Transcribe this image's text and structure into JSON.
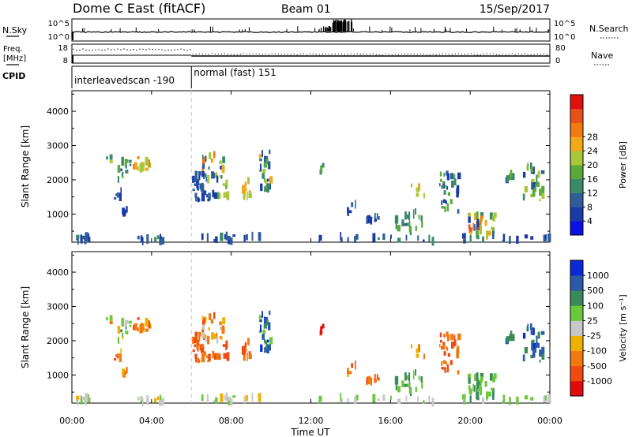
{
  "header": {
    "station": "Dome C East (fitACF)",
    "beam": "Beam 01",
    "date": "15/Sep/2017"
  },
  "strip_labels": {
    "nsky": "N.Sky",
    "freq": "Freq.",
    "freq_unit": "[MHz]",
    "cpid": "CPID",
    "nsearch": "N.Search",
    "nave": "Nave",
    "nsky_ticks": [
      "10^5",
      "10^0"
    ],
    "nsearch_ticks": [
      "10^5",
      "10^0"
    ],
    "freq_ticks": [
      "18",
      "8"
    ],
    "nave_ticks": [
      "80",
      "0"
    ]
  },
  "cpid_segments": [
    {
      "start": 0.0,
      "label": "interleavedscan -190"
    },
    {
      "start": 6.0,
      "label": "normal (fast) 151"
    }
  ],
  "time_axis": {
    "label": "Time UT",
    "range": [
      0,
      24
    ],
    "ticks": [
      0,
      4,
      8,
      12,
      16,
      20,
      24
    ],
    "tick_labels": [
      "00:00",
      "04:00",
      "08:00",
      "12:00",
      "16:00",
      "20:00",
      "00:00"
    ]
  },
  "range_axis": {
    "label": "Slant Range [km]",
    "range": [
      180,
      4600
    ],
    "ticks": [
      1000,
      2000,
      3000,
      4000
    ],
    "tick_labels": [
      "1000",
      "2000",
      "3000",
      "4000"
    ]
  },
  "power_scale": {
    "title": "Power [dB]",
    "range": [
      0,
      32
    ],
    "tick_labels": [
      "4",
      "8",
      "12",
      "16",
      "20",
      "24",
      "28"
    ],
    "colors": [
      "#0a10e6",
      "#1a3aa8",
      "#2e5e9a",
      "#3a8a6a",
      "#5aaa3a",
      "#a8c83a",
      "#f2a81a",
      "#f07a10",
      "#e8501a",
      "#e01010"
    ]
  },
  "velocity_scale": {
    "title": "Velocity [m s⁻¹]",
    "tick_labels": [
      "1000",
      "500",
      "100",
      "25",
      "-25",
      "-100",
      "-500",
      "-1000"
    ],
    "colors": [
      "#0a2ad8",
      "#2a5aa8",
      "#3a8a5a",
      "#6ac83a",
      "#c8c8c8",
      "#f0b000",
      "#f07a10",
      "#f04a10",
      "#e00a0a"
    ]
  },
  "chart_data": {
    "type": "heatmap",
    "x_unit": "hours UT",
    "y_unit": "km",
    "xlim": [
      0,
      24
    ],
    "ylim": [
      180,
      4600
    ],
    "panels": [
      "Power [dB]",
      "Velocity [m s⁻¹]"
    ],
    "power_clusters": [
      {
        "t": [
          0.2,
          0.9
        ],
        "r": [
          200,
          360
        ],
        "n": 14,
        "v": [
          4,
          12
        ]
      },
      {
        "t": [
          1.6,
          1.9
        ],
        "r": [
          2500,
          2720
        ],
        "n": 3,
        "v": [
          12,
          18
        ]
      },
      {
        "t": [
          2.0,
          2.9
        ],
        "r": [
          2000,
          2600
        ],
        "n": 12,
        "v": [
          8,
          16
        ]
      },
      {
        "t": [
          2.1,
          2.5
        ],
        "r": [
          1300,
          1700
        ],
        "n": 5,
        "v": [
          4,
          8
        ]
      },
      {
        "t": [
          2.4,
          2.8
        ],
        "r": [
          950,
          1150
        ],
        "n": 4,
        "v": [
          4,
          8
        ]
      },
      {
        "t": [
          3.0,
          4.0
        ],
        "r": [
          2300,
          2650
        ],
        "n": 16,
        "v": [
          16,
          24
        ]
      },
      {
        "t": [
          3.2,
          4.5
        ],
        "r": [
          200,
          360
        ],
        "n": 10,
        "v": [
          4,
          10
        ]
      },
      {
        "t": [
          6.0,
          6.6
        ],
        "r": [
          1700,
          2200
        ],
        "n": 16,
        "v": [
          4,
          10
        ]
      },
      {
        "t": [
          6.1,
          7.3
        ],
        "r": [
          1400,
          1700
        ],
        "n": 14,
        "v": [
          4,
          8
        ]
      },
      {
        "t": [
          6.5,
          7.6
        ],
        "r": [
          2000,
          2800
        ],
        "n": 26,
        "v": [
          4,
          26
        ]
      },
      {
        "t": [
          7.3,
          7.8
        ],
        "r": [
          1500,
          1900
        ],
        "n": 8,
        "v": [
          12,
          18
        ]
      },
      {
        "t": [
          8.5,
          8.9
        ],
        "r": [
          1450,
          2000
        ],
        "n": 12,
        "v": [
          16,
          26
        ]
      },
      {
        "t": [
          9.3,
          10.0
        ],
        "r": [
          1700,
          2900
        ],
        "n": 24,
        "v": [
          4,
          20
        ]
      },
      {
        "t": [
          6.4,
          9.8
        ],
        "r": [
          200,
          380
        ],
        "n": 16,
        "v": [
          4,
          10
        ]
      },
      {
        "t": [
          12.4,
          12.6
        ],
        "r": [
          2200,
          2500
        ],
        "n": 3,
        "v": [
          8,
          14
        ]
      },
      {
        "t": [
          13.8,
          14.3
        ],
        "r": [
          1050,
          1300
        ],
        "n": 5,
        "v": [
          4,
          8
        ]
      },
      {
        "t": [
          14.7,
          15.4
        ],
        "r": [
          780,
          960
        ],
        "n": 10,
        "v": [
          4,
          10
        ]
      },
      {
        "t": [
          16.2,
          17.6
        ],
        "r": [
          500,
          1100
        ],
        "n": 18,
        "v": [
          8,
          16
        ]
      },
      {
        "t": [
          17.0,
          17.8
        ],
        "r": [
          1500,
          1900
        ],
        "n": 5,
        "v": [
          12,
          20
        ]
      },
      {
        "t": [
          18.4,
          19.4
        ],
        "r": [
          1000,
          2200
        ],
        "n": 28,
        "v": [
          4,
          16
        ]
      },
      {
        "t": [
          19.8,
          21.2
        ],
        "r": [
          250,
          1000
        ],
        "n": 34,
        "v": [
          4,
          28
        ]
      },
      {
        "t": [
          21.5,
          22.2
        ],
        "r": [
          1800,
          2200
        ],
        "n": 6,
        "v": [
          8,
          14
        ]
      },
      {
        "t": [
          22.6,
          23.6
        ],
        "r": [
          1400,
          2500
        ],
        "n": 24,
        "v": [
          4,
          20
        ]
      },
      {
        "t": [
          12.0,
          24.0
        ],
        "r": [
          200,
          360
        ],
        "n": 30,
        "v": [
          4,
          12
        ]
      }
    ],
    "velocity_clusters": [
      {
        "t": [
          0.2,
          0.9
        ],
        "r": [
          200,
          360
        ],
        "n": 14,
        "c": [
          3,
          5
        ]
      },
      {
        "t": [
          1.6,
          1.9
        ],
        "r": [
          2500,
          2720
        ],
        "n": 3,
        "c": [
          3,
          6
        ]
      },
      {
        "t": [
          2.0,
          2.9
        ],
        "r": [
          2000,
          2600
        ],
        "n": 12,
        "c": [
          2,
          5
        ]
      },
      {
        "t": [
          2.1,
          2.5
        ],
        "r": [
          1300,
          1700
        ],
        "n": 5,
        "c": [
          5,
          7
        ]
      },
      {
        "t": [
          2.4,
          2.8
        ],
        "r": [
          950,
          1150
        ],
        "n": 4,
        "c": [
          5,
          7
        ]
      },
      {
        "t": [
          3.0,
          4.0
        ],
        "r": [
          2300,
          2650
        ],
        "n": 16,
        "c": [
          5,
          7
        ]
      },
      {
        "t": [
          3.2,
          4.5
        ],
        "r": [
          200,
          360
        ],
        "n": 10,
        "c": [
          3,
          5
        ]
      },
      {
        "t": [
          6.0,
          6.6
        ],
        "r": [
          1700,
          2200
        ],
        "n": 16,
        "c": [
          6,
          7
        ]
      },
      {
        "t": [
          6.1,
          7.3
        ],
        "r": [
          1400,
          1700
        ],
        "n": 14,
        "c": [
          6,
          7
        ]
      },
      {
        "t": [
          6.5,
          7.6
        ],
        "r": [
          2000,
          2800
        ],
        "n": 26,
        "c": [
          4,
          7
        ]
      },
      {
        "t": [
          7.3,
          7.8
        ],
        "r": [
          1500,
          1900
        ],
        "n": 8,
        "c": [
          6,
          7
        ]
      },
      {
        "t": [
          8.5,
          8.9
        ],
        "r": [
          1450,
          2000
        ],
        "n": 12,
        "c": [
          6,
          7
        ]
      },
      {
        "t": [
          9.3,
          10.0
        ],
        "r": [
          1700,
          2900
        ],
        "n": 24,
        "c": [
          0,
          3
        ]
      },
      {
        "t": [
          6.4,
          9.8
        ],
        "r": [
          200,
          380
        ],
        "n": 16,
        "c": [
          3,
          5
        ]
      },
      {
        "t": [
          12.4,
          12.6
        ],
        "r": [
          2200,
          2500
        ],
        "n": 3,
        "c": [
          7,
          8
        ]
      },
      {
        "t": [
          13.8,
          14.3
        ],
        "r": [
          1050,
          1300
        ],
        "n": 5,
        "c": [
          5,
          7
        ]
      },
      {
        "t": [
          14.7,
          15.4
        ],
        "r": [
          780,
          960
        ],
        "n": 10,
        "c": [
          6,
          7
        ]
      },
      {
        "t": [
          16.2,
          17.6
        ],
        "r": [
          500,
          1100
        ],
        "n": 18,
        "c": [
          2,
          3
        ]
      },
      {
        "t": [
          17.0,
          17.8
        ],
        "r": [
          1500,
          1900
        ],
        "n": 5,
        "c": [
          4,
          6
        ]
      },
      {
        "t": [
          18.4,
          19.4
        ],
        "r": [
          1000,
          2200
        ],
        "n": 28,
        "c": [
          6,
          7
        ]
      },
      {
        "t": [
          19.8,
          21.2
        ],
        "r": [
          250,
          1000
        ],
        "n": 34,
        "c": [
          2,
          3
        ]
      },
      {
        "t": [
          21.5,
          22.2
        ],
        "r": [
          1800,
          2200
        ],
        "n": 6,
        "c": [
          1,
          2
        ]
      },
      {
        "t": [
          22.6,
          23.6
        ],
        "r": [
          1400,
          2500
        ],
        "n": 24,
        "c": [
          0,
          2
        ]
      },
      {
        "t": [
          12.0,
          24.0
        ],
        "r": [
          200,
          360
        ],
        "n": 30,
        "c": [
          3,
          4
        ]
      }
    ]
  }
}
